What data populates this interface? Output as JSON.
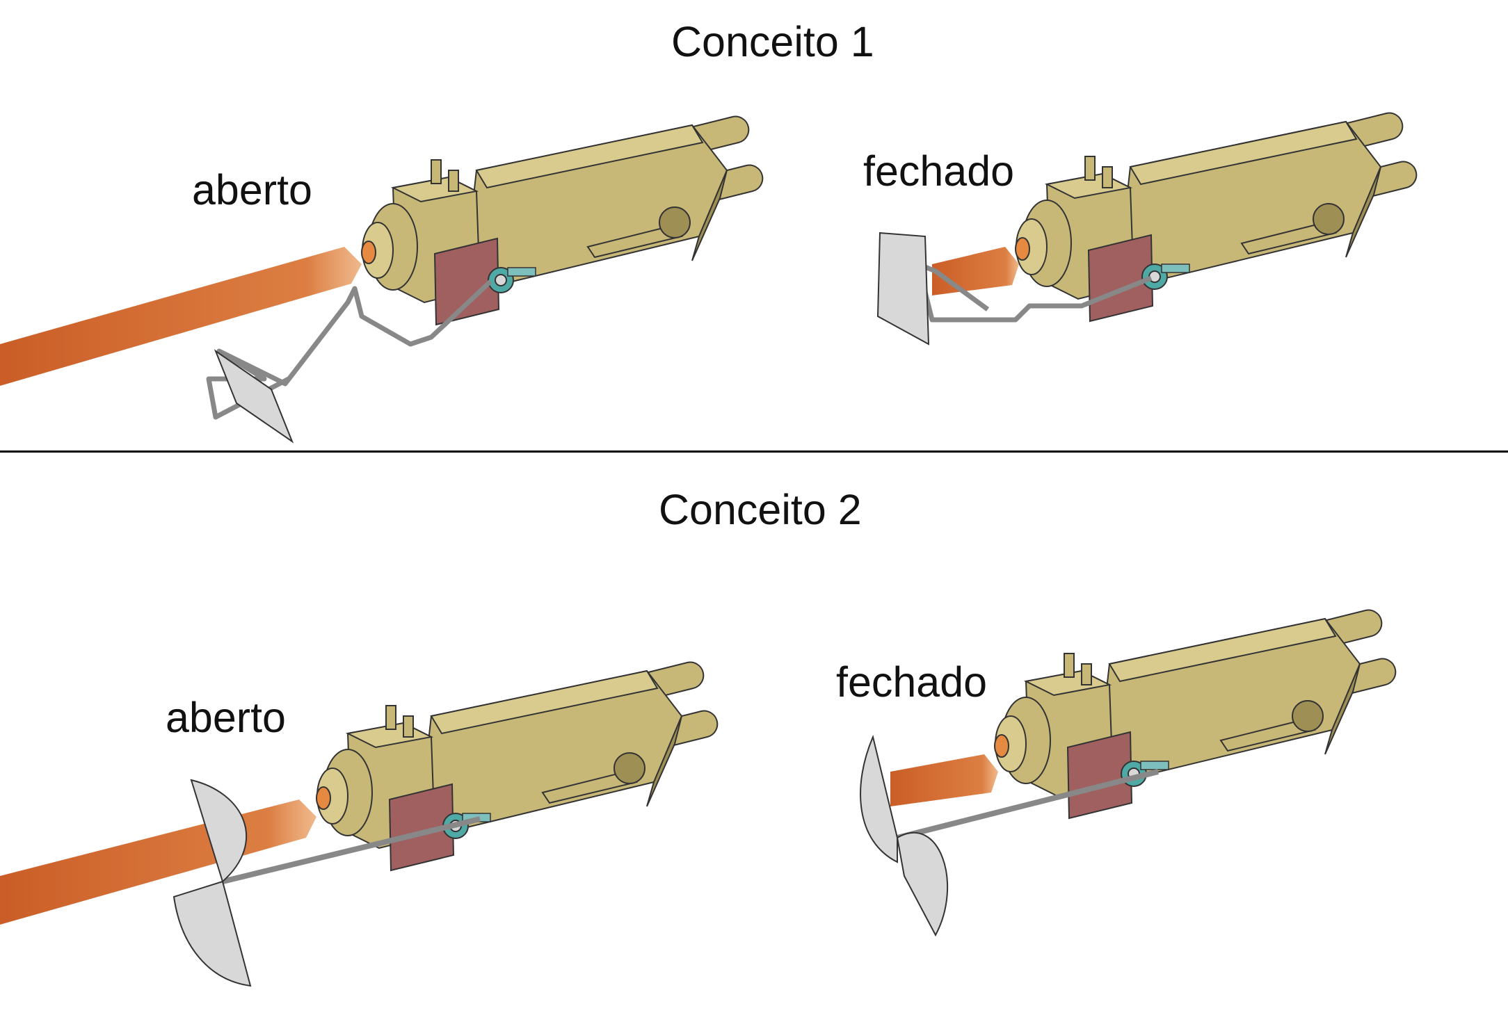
{
  "concepts": [
    {
      "title": "Conceito 1",
      "states": {
        "open": "aberto",
        "closed": "fechado"
      }
    },
    {
      "title": "Conceito 2",
      "states": {
        "open": "aberto",
        "closed": "fechado"
      }
    }
  ],
  "colors": {
    "torch_body": "#c8b878",
    "torch_shade": "#9e8f55",
    "torch_outline": "#333333",
    "flame": "#c8551c",
    "plate": "#a06060",
    "bracket": "#4fa9a5",
    "shutter": "#d8d8d8",
    "divider": "#000000"
  }
}
